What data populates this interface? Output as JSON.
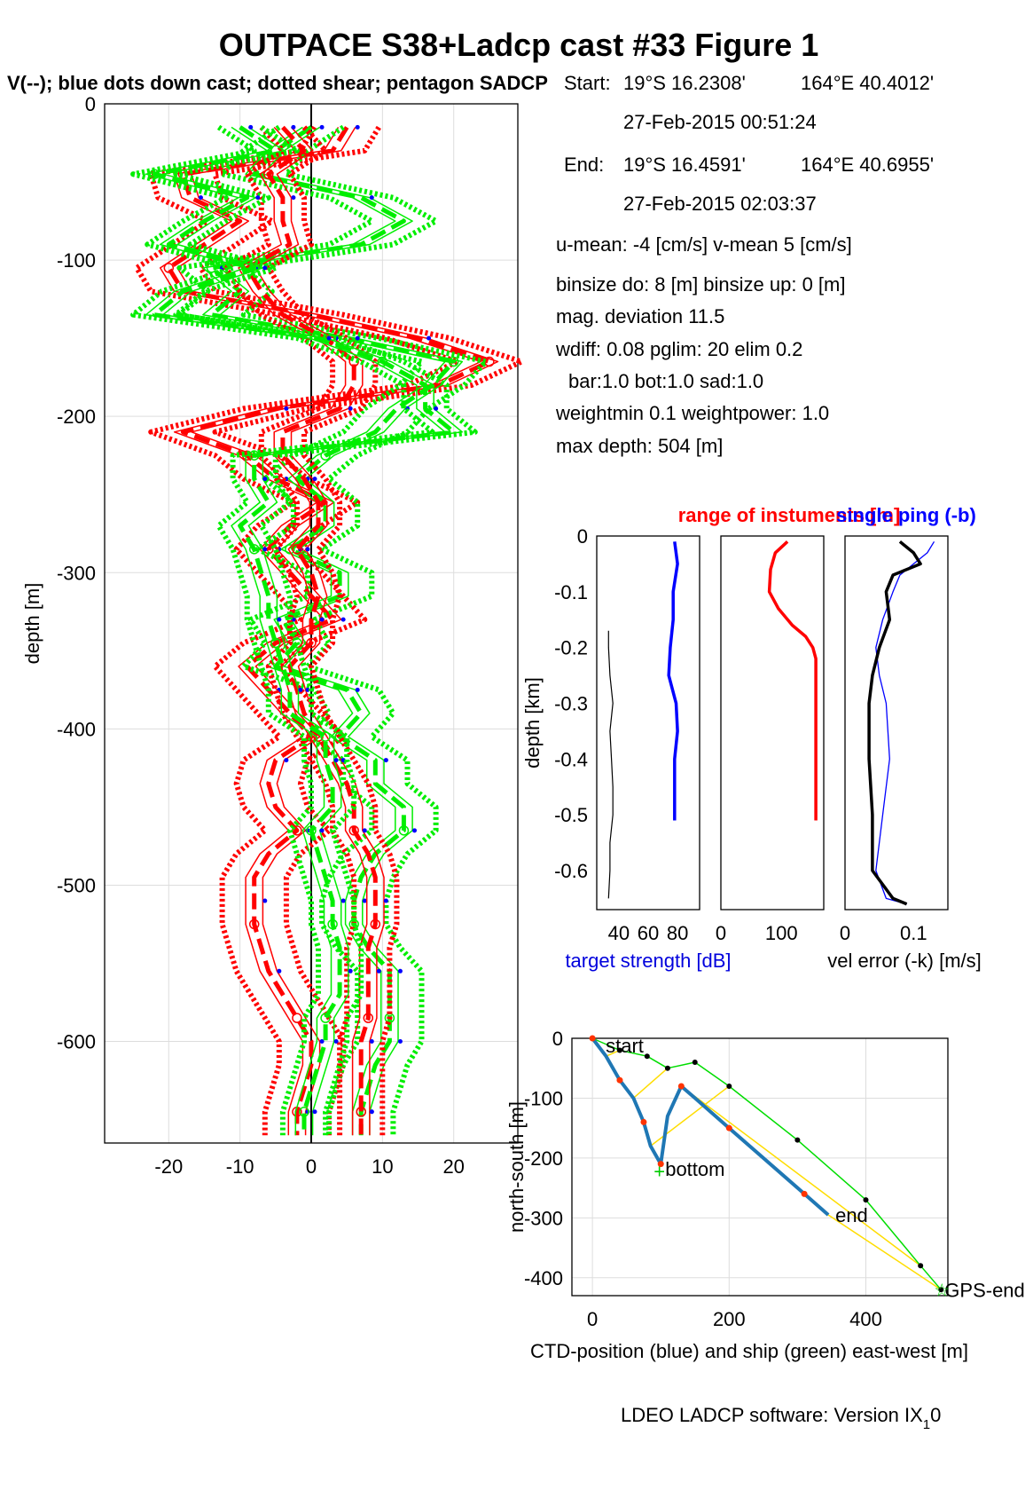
{
  "title": "OUTPACE S38+Ladcp cast #33  Figure 1",
  "subtitle": "V(--); blue dots down cast; dotted shear; pentagon SADCP",
  "info": {
    "start_label": "Start:",
    "start_lat": "19°S 16.2308'",
    "start_lon": "164°E 40.4012'",
    "start_time": "27-Feb-2015 00:51:24",
    "end_label": "End:",
    "end_lat": "19°S 16.4591'",
    "end_lon": "164°E 40.6955'",
    "end_time": "27-Feb-2015 02:03:37",
    "means": "u-mean:  -4 [cm/s]    v-mean   5 [cm/s]",
    "binsize": "binsize do: 8 [m]  binsize up:  0 [m]",
    "magdev": "mag. deviation 11.5",
    "wdiff": "wdiff: 0.08  pglim: 20  elim 0.2",
    "bar": "bar:1.0 bot:1.0 sad:1.0",
    "weight": "weightmin 0.1  weightpower: 1.0",
    "maxdepth": "max depth: 504 [m]"
  },
  "footer": "LDEO LADCP software: Version IX",
  "footer_sub": "1",
  "footer_end": "0",
  "colors": {
    "u": "#ff0000",
    "v": "#00ee00",
    "dots": "#0000ff",
    "ctd": "#1f77b4",
    "ship": "#00dd00",
    "link": "#ffdd00"
  },
  "chart_data": [
    {
      "type": "line",
      "ylabel": "depth [m]",
      "xlim": [
        -29,
        29
      ],
      "ylim": [
        -665,
        0
      ],
      "xticks": [
        "-20",
        "-10",
        "0",
        "10",
        "20"
      ],
      "yticks": [
        "0",
        "-100",
        "-200",
        "-300",
        "-400",
        "-500",
        "-600"
      ],
      "grid": true,
      "depth": [
        -15,
        -30,
        -45,
        -60,
        -75,
        -90,
        -105,
        -120,
        -135,
        -150,
        -165,
        -180,
        -195,
        -210,
        -225,
        -240,
        -255,
        -270,
        -285,
        -300,
        -315,
        -330,
        -345,
        -360,
        -375,
        -390,
        -405,
        -420,
        -435,
        -450,
        -465,
        -480,
        -495,
        -510,
        -525,
        -540,
        -555,
        -570,
        -585,
        -600,
        -615,
        -630,
        -645,
        -660
      ],
      "series": [
        {
          "values": [
            5,
            3,
            -18,
            -17,
            -10,
            -15,
            -20,
            -18,
            0,
            15,
            25,
            18,
            -5,
            -18,
            -9,
            -5,
            2,
            -3,
            -6,
            -3,
            0,
            3,
            -5,
            -9,
            -6,
            -3,
            0,
            -5,
            -6,
            -5,
            -2,
            -6,
            -8,
            -8,
            -8,
            -7,
            -6,
            -4,
            -2,
            0,
            0,
            -1,
            -2,
            -2
          ]
        },
        {
          "values": [
            0,
            -5,
            -8,
            7,
            13,
            7,
            -14,
            -10,
            -14,
            5,
            20,
            17,
            12,
            9,
            2,
            -2,
            2,
            2,
            -3,
            4,
            4,
            -4,
            -2,
            -5,
            5,
            7,
            4,
            9,
            9,
            13,
            13,
            9,
            7,
            6,
            6,
            8,
            11,
            11,
            11,
            11,
            9,
            8,
            7,
            7
          ]
        },
        {
          "values": [
            -4,
            -1,
            -6,
            -4,
            -4,
            -3,
            -9,
            -7,
            -4,
            2,
            6,
            6,
            4,
            -4,
            -4,
            -1,
            1,
            1,
            -2,
            0,
            1,
            0,
            0,
            -3,
            -2,
            -1,
            1,
            3,
            5,
            6,
            6,
            8,
            9,
            9,
            9,
            8,
            8,
            8,
            8,
            7,
            7,
            7,
            7,
            7
          ]
        },
        {
          "values": [
            -10,
            -5,
            -22,
            -9,
            -15,
            -20,
            -8,
            -18,
            -22,
            1,
            10,
            16,
            16,
            20,
            -8,
            -8,
            -6,
            -10,
            -8,
            -7,
            -6,
            -6,
            -5,
            -4,
            -3,
            -3,
            2,
            2,
            3,
            3,
            0,
            1,
            2,
            3,
            3,
            4,
            4,
            4,
            2,
            2,
            1,
            0,
            -1,
            -1
          ]
        }
      ]
    },
    {
      "type": "line",
      "xlabel": "target strength [dB]",
      "ylabel": "depth [km]",
      "xlim": [
        25,
        95
      ],
      "ylim": [
        -0.67,
        0
      ],
      "xticks": [
        "40",
        "60",
        "80"
      ],
      "yticks": [
        "0",
        "-0.1",
        "-0.2",
        "-0.3",
        "-0.4",
        "-0.5",
        "-0.6"
      ],
      "depth": [
        -0.01,
        -0.05,
        -0.1,
        -0.15,
        -0.2,
        -0.25,
        -0.3,
        -0.35,
        -0.4,
        -0.45,
        -0.5,
        -0.51
      ],
      "series": [
        {
          "values": [
            78,
            80,
            77,
            77,
            75,
            74,
            79,
            80,
            78,
            78,
            78,
            78
          ]
        }
      ],
      "series_b": {
        "depth": [
          -0.17,
          -0.2,
          -0.25,
          -0.3,
          -0.35,
          -0.4,
          -0.45,
          -0.5,
          -0.55,
          -0.6,
          -0.65
        ],
        "values": [
          33,
          33,
          34,
          36,
          34,
          35,
          36,
          36,
          34,
          34,
          33
        ]
      }
    },
    {
      "type": "line",
      "title": "range of instuments [m]",
      "xlim": [
        0,
        170
      ],
      "ylim": [
        -0.67,
        0
      ],
      "xticks": [
        "0",
        "100"
      ],
      "depth": [
        -0.01,
        -0.03,
        -0.06,
        -0.1,
        -0.13,
        -0.16,
        -0.18,
        -0.2,
        -0.22,
        -0.3,
        -0.4,
        -0.51
      ],
      "values": [
        110,
        90,
        82,
        80,
        95,
        118,
        140,
        152,
        157,
        157,
        157,
        157
      ]
    },
    {
      "type": "line",
      "title": "single ping (-b)",
      "xlabel": "vel error (-k) [m/s]",
      "xlim": [
        0,
        0.15
      ],
      "ylim": [
        -0.67,
        0
      ],
      "xticks": [
        "0",
        "0.1"
      ],
      "depth": [
        -0.01,
        -0.03,
        -0.05,
        -0.07,
        -0.1,
        -0.15,
        -0.2,
        -0.25,
        -0.3,
        -0.4,
        -0.5,
        -0.6,
        -0.65,
        -0.66
      ],
      "values": [
        0.08,
        0.1,
        0.11,
        0.07,
        0.06,
        0.065,
        0.05,
        0.04,
        0.035,
        0.035,
        0.04,
        0.04,
        0.07,
        0.09
      ],
      "values_b": [
        0.13,
        0.12,
        0.1,
        0.08,
        0.07,
        0.055,
        0.045,
        0.05,
        0.06,
        0.065,
        0.055,
        0.045,
        0.06,
        0.09
      ]
    },
    {
      "type": "line",
      "xlabel": "CTD-position (blue) and ship (green) east-west [m]",
      "ylabel": "north-south [m]",
      "xlim": [
        -30,
        520
      ],
      "ylim": [
        -430,
        0
      ],
      "xticks": [
        "0",
        "200",
        "400"
      ],
      "yticks": [
        "0",
        "-100",
        "-200",
        "-300",
        "-400"
      ],
      "labels": [
        "start",
        "bottom",
        "end",
        "GPS-end"
      ],
      "ctd": {
        "x": [
          0,
          20,
          40,
          60,
          75,
          85,
          100,
          110,
          130,
          150,
          200,
          260,
          310,
          345
        ],
        "y": [
          0,
          -30,
          -70,
          -100,
          -140,
          -180,
          -210,
          -130,
          -80,
          -100,
          -150,
          -210,
          -260,
          -295
        ]
      },
      "ship": {
        "x": [
          0,
          40,
          80,
          110,
          150,
          200,
          300,
          400,
          480,
          510
        ],
        "y": [
          0,
          -20,
          -30,
          -50,
          -40,
          -80,
          -170,
          -270,
          -380,
          -420
        ]
      }
    }
  ]
}
